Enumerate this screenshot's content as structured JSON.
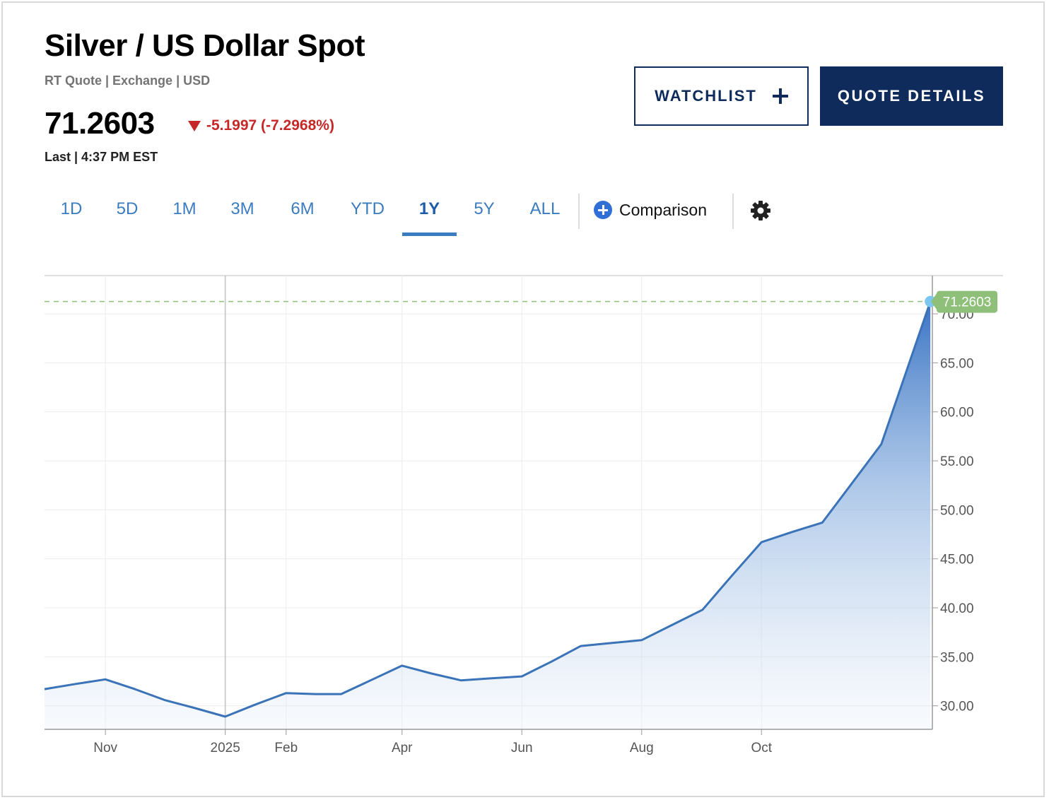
{
  "header": {
    "title": "Silver / US Dollar Spot",
    "subtitle": "RT Quote | Exchange | USD",
    "price": "71.2603",
    "change": "-5.1997 (-7.2968%)",
    "last_time": "Last | 4:37 PM EST"
  },
  "buttons": {
    "watchlist": "WATCHLIST",
    "quote_details": "QUOTE DETAILS"
  },
  "tabs": [
    {
      "label": "1D",
      "active": false
    },
    {
      "label": "5D",
      "active": false
    },
    {
      "label": "1M",
      "active": false
    },
    {
      "label": "3M",
      "active": false
    },
    {
      "label": "6M",
      "active": false
    },
    {
      "label": "YTD",
      "active": false
    },
    {
      "label": "1Y",
      "active": true
    },
    {
      "label": "5Y",
      "active": false
    },
    {
      "label": "ALL",
      "active": false
    }
  ],
  "comparison_label": "Comparison",
  "colors": {
    "brand_navy": "#0e2b5c",
    "line_blue": "#3a73b8",
    "down_red": "#c62828",
    "last_badge_green": "#8fc07a",
    "tab_blue": "#3b7bbf"
  },
  "chart_data": {
    "type": "area",
    "x": [
      "2024-10-01",
      "2024-10-16",
      "2024-11-01",
      "2024-11-16",
      "2024-12-01",
      "2024-12-16",
      "2025-01-01",
      "2025-01-16",
      "2025-02-01",
      "2025-02-16",
      "2025-03-01",
      "2025-03-16",
      "2025-04-01",
      "2025-04-16",
      "2025-05-01",
      "2025-05-16",
      "2025-06-01",
      "2025-06-16",
      "2025-07-01",
      "2025-07-16",
      "2025-08-01",
      "2025-08-16",
      "2025-09-01",
      "2025-09-16",
      "2025-10-01",
      "2025-10-16",
      "2025-11-01",
      "2025-11-16",
      "2025-12-01",
      "2025-12-26"
    ],
    "series": [
      {
        "values": [
          31.7,
          32.2,
          32.7,
          31.7,
          30.6,
          29.8,
          28.9,
          30.1,
          31.3,
          31.2,
          31.2,
          32.6,
          34.1,
          33.3,
          32.6,
          32.8,
          33.0,
          34.5,
          36.1,
          36.4,
          36.7,
          38.2,
          39.8,
          43.3,
          46.7,
          47.7,
          48.7,
          52.7,
          56.7,
          71.2603
        ]
      }
    ],
    "last_value": "71.2603",
    "x_ticks": [
      "Nov",
      "2025",
      "Feb",
      "Apr",
      "Jun",
      "Aug",
      "Oct"
    ],
    "x_tick_dates": [
      "2024-11-01",
      "2025-01-01",
      "2025-02-01",
      "2025-04-01",
      "2025-06-01",
      "2025-08-01",
      "2025-10-01"
    ],
    "y_ticks": [
      "30.00",
      "35.00",
      "40.00",
      "45.00",
      "50.00",
      "55.00",
      "60.00",
      "65.00",
      "70.00"
    ],
    "ylim": [
      27.6,
      73.9
    ],
    "xlim": [
      "2024-10-01",
      "2025-12-27"
    ],
    "grid": true,
    "y_axis_side": "right",
    "title": "",
    "xlabel": "",
    "ylabel": ""
  }
}
